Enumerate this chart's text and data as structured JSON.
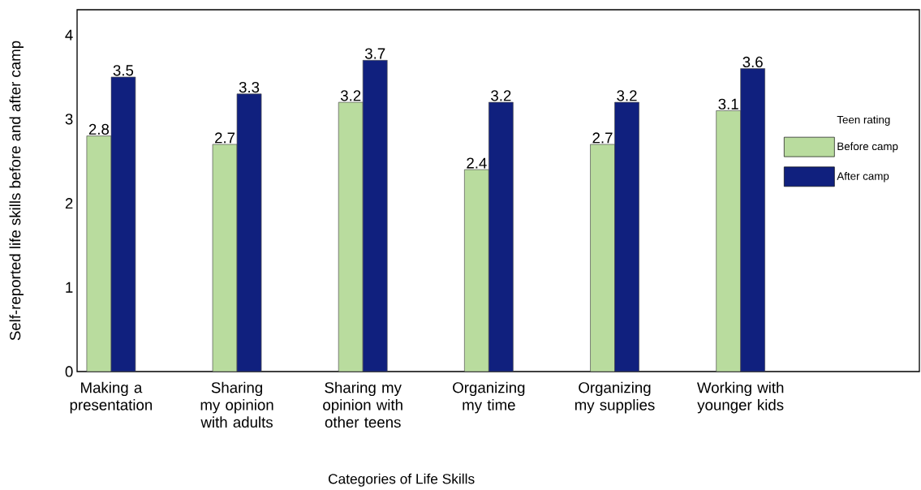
{
  "chart_data": {
    "type": "bar",
    "xlabel": "Categories of Life Skills",
    "ylabel": "Self-reported life skills before and after camp",
    "legend_title": "Teen rating",
    "categories": [
      "Making a presentation",
      "Sharing my opinion with adults",
      "Sharing my opinion with other teens",
      "Organizing my time",
      "Organizing my supplies",
      "Working with younger kids"
    ],
    "series": [
      {
        "name": "Before camp",
        "color": "#b9dc9e",
        "values": [
          2.8,
          2.7,
          3.2,
          2.4,
          2.7,
          3.1
        ]
      },
      {
        "name": "After camp",
        "color": "#10207e",
        "values": [
          3.5,
          3.3,
          3.7,
          3.2,
          3.2,
          3.6
        ]
      }
    ],
    "ylim": [
      0,
      4.3
    ],
    "yticks": [
      0,
      1,
      2,
      3,
      4
    ],
    "data_labels": true,
    "grid": false,
    "legend": "right"
  }
}
